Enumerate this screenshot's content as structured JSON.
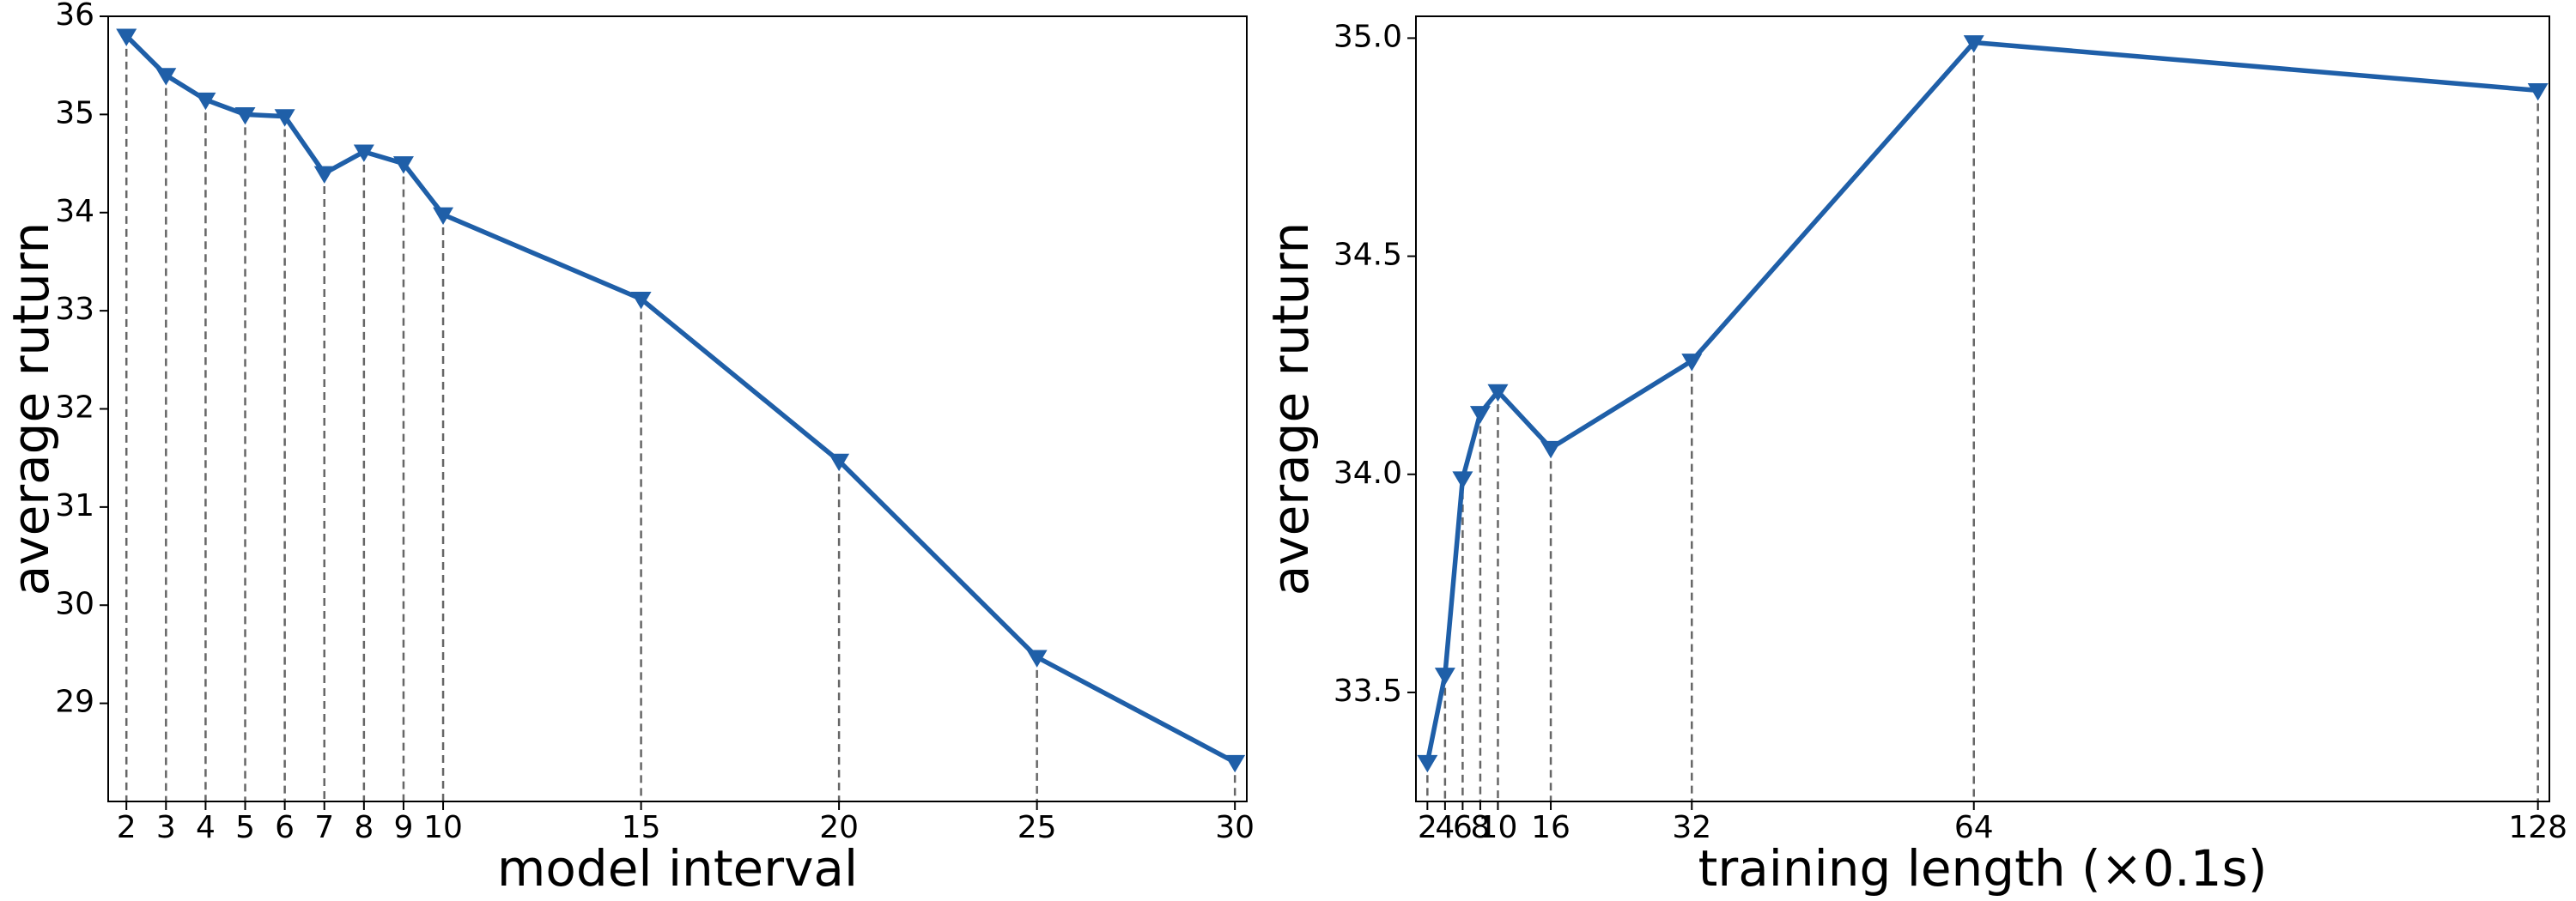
{
  "chart_data": [
    {
      "type": "line",
      "xlabel": "model interval",
      "ylabel": "average ruturn",
      "x": [
        2,
        3,
        4,
        5,
        6,
        7,
        8,
        9,
        10,
        15,
        20,
        25,
        30
      ],
      "values": [
        35.8,
        35.4,
        35.15,
        35.0,
        34.98,
        34.4,
        34.62,
        34.5,
        33.98,
        33.12,
        31.47,
        29.47,
        28.4
      ],
      "color": "#1f5fa8",
      "marker": "triangle-down",
      "drop_lines": true,
      "xlim": [
        1.54,
        30.3
      ],
      "ylim": [
        28.0,
        36.0
      ],
      "xticks": [
        2,
        3,
        4,
        5,
        6,
        7,
        8,
        9,
        10,
        15,
        20,
        25,
        30
      ],
      "yticks": [
        29,
        30,
        31,
        32,
        33,
        34,
        35,
        36
      ],
      "grid": false
    },
    {
      "type": "line",
      "xlabel": "training length (×0.1s)",
      "ylabel": "average ruturn",
      "x": [
        2,
        4,
        6,
        8,
        10,
        16,
        32,
        64,
        128
      ],
      "values": [
        33.34,
        33.54,
        33.99,
        34.14,
        34.19,
        34.06,
        34.26,
        34.99,
        34.88
      ],
      "color": "#1f5fa8",
      "marker": "triangle-down",
      "drop_lines": true,
      "xlim": [
        0.7,
        129.3
      ],
      "ylim": [
        33.25,
        35.05
      ],
      "xticks": [
        2,
        4,
        6,
        8,
        10,
        16,
        32,
        64,
        128
      ],
      "yticks": [
        33.5,
        {
          "value": 34.0,
          "label": "34.0"
        },
        34.5,
        {
          "value": 35.0,
          "label": "35.0"
        }
      ],
      "grid": false
    }
  ]
}
